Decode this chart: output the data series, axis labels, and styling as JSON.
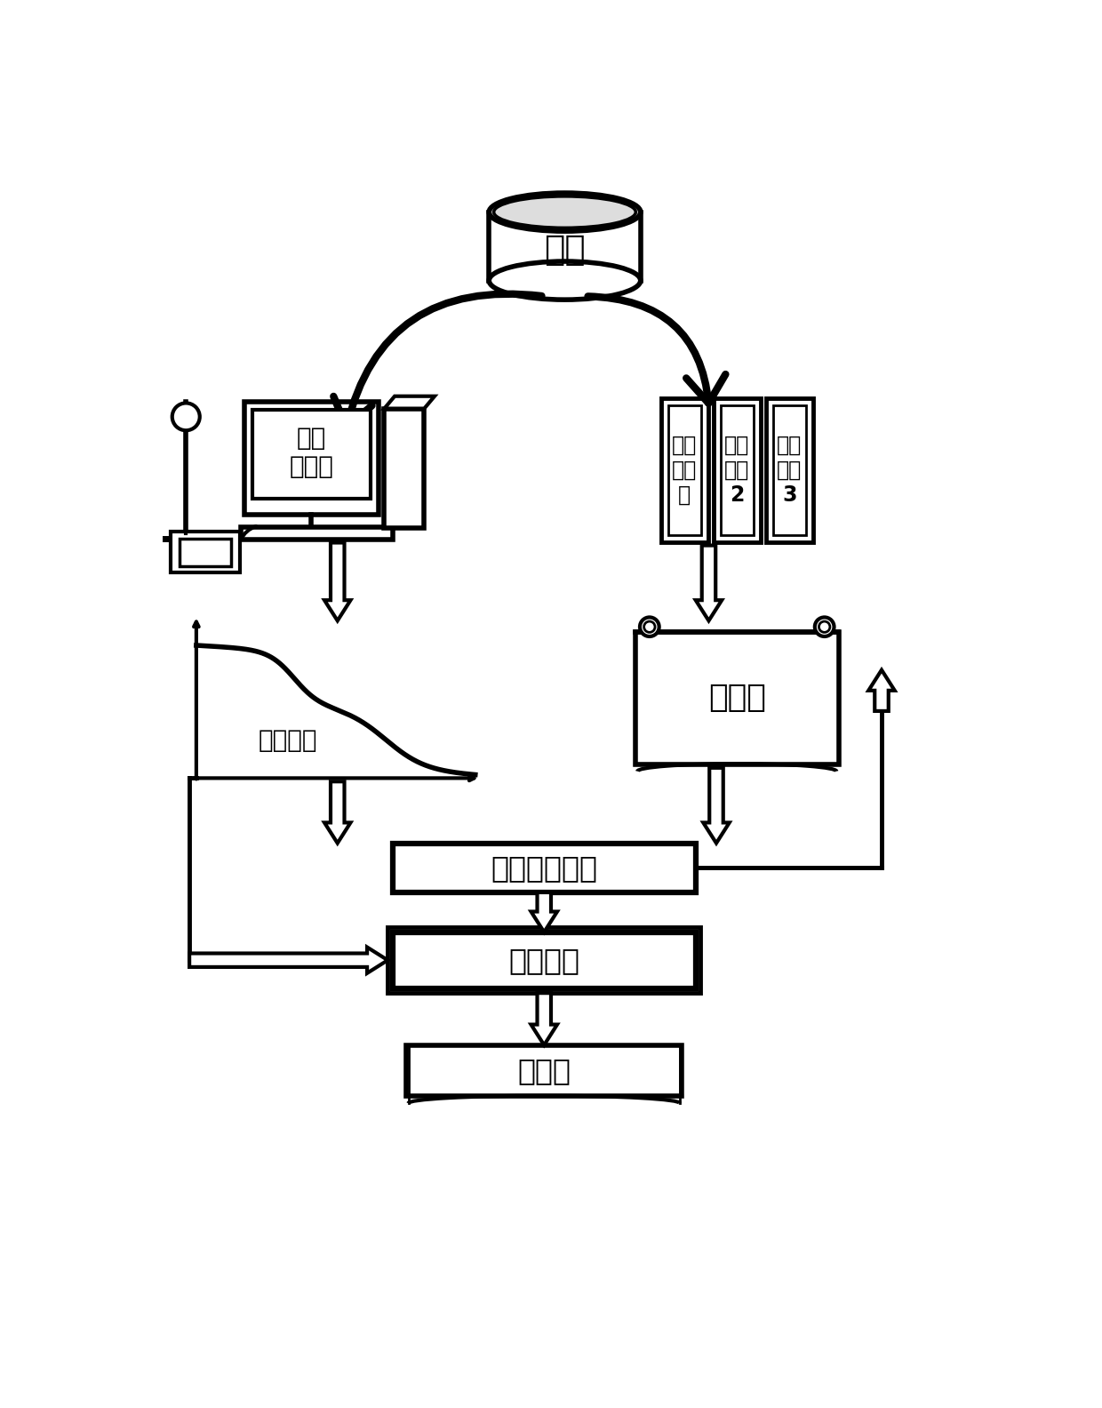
{
  "bg_color": "#ffffff",
  "text_color": "#000000",
  "font_size_large": 24,
  "font_size_medium": 20,
  "font_size_small": 17,
  "sample_label": "样品",
  "tga_label": "热重\n测试仪",
  "std1_label": "分析\n标准\n一",
  "std2_label": "分析\n标准\n2",
  "std3_label": "分析\n标准\n3",
  "tga_curve_label": "热重曲线",
  "ref_label": "参考值",
  "pls_label": "偏最小二乘法",
  "model_label": "预测模型",
  "pred_label": "预测值"
}
